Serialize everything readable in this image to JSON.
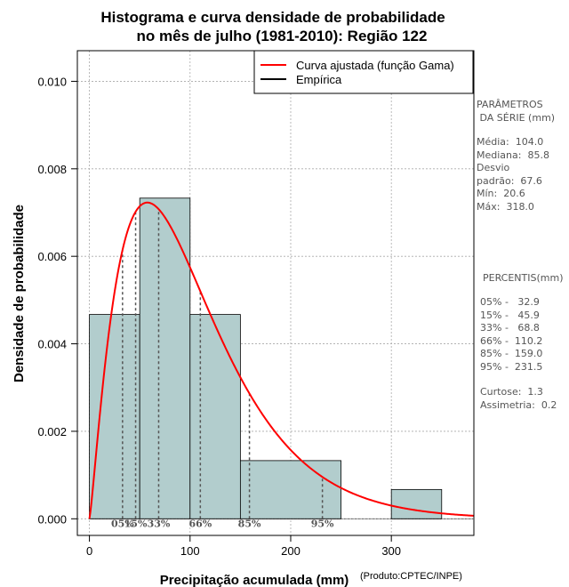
{
  "chart_data": {
    "type": "histogram",
    "title": [
      "Histograma e curva densidade de probabilidade",
      "no mês de julho (1981-2010): Região 122"
    ],
    "xlabel": "Precipitação acumulada (mm)",
    "ylabel": "Densidade de probabilidade",
    "credit": "(Produto:CPTEC/INPE)",
    "xlim": [
      -12,
      382
    ],
    "ylim": [
      -0.00038,
      0.0107
    ],
    "x_ticks": [
      0,
      100,
      200,
      300
    ],
    "y_ticks": [
      0.0,
      0.002,
      0.004,
      0.006,
      0.008,
      0.01
    ],
    "y_tick_labels": [
      "0.000",
      "0.002",
      "0.004",
      "0.006",
      "0.008",
      "0.010"
    ],
    "bins": [
      {
        "x0": 0,
        "x1": 50,
        "density": 0.00467
      },
      {
        "x0": 50,
        "x1": 100,
        "density": 0.00733
      },
      {
        "x0": 100,
        "x1": 150,
        "density": 0.00467
      },
      {
        "x0": 150,
        "x1": 250,
        "density": 0.00133
      },
      {
        "x0": 300,
        "x1": 350,
        "density": 0.00067
      }
    ],
    "series": [
      {
        "name": "Curva ajustada (função Gama)",
        "color": "#ff0000",
        "gamma_shape": 2.24,
        "gamma_scale": 46.4
      },
      {
        "name": "Empírica",
        "color": "#000000"
      }
    ],
    "percentiles": [
      {
        "label": "05%",
        "value": 32.9
      },
      {
        "label": "15%",
        "value": 45.9
      },
      {
        "label": "33%",
        "value": 68.8
      },
      {
        "label": "66%",
        "value": 110.2
      },
      {
        "label": "85%",
        "value": 159.0
      },
      {
        "label": "95%",
        "value": 231.5
      }
    ],
    "bar_color": "#b2cdcd",
    "grid": true,
    "legend_position": "top-right"
  },
  "side_panel": {
    "params_title": "PARÂMETROS\n DA SÉRIE (mm)",
    "params_lines": "Média:  104.0\nMediana:  85.8\nDesvio\npadrão:  67.6\nMín:  20.6\nMáx:  318.0",
    "pct_title": "PERCENTIS(mm)",
    "pct_lines": "05% -   32.9\n15% -   45.9\n33% -   68.8\n66% -  110.2\n85% -  159.0\n95% -  231.5",
    "stats_lines": "Curtose:  1.3\nAssimetria:  0.2"
  }
}
